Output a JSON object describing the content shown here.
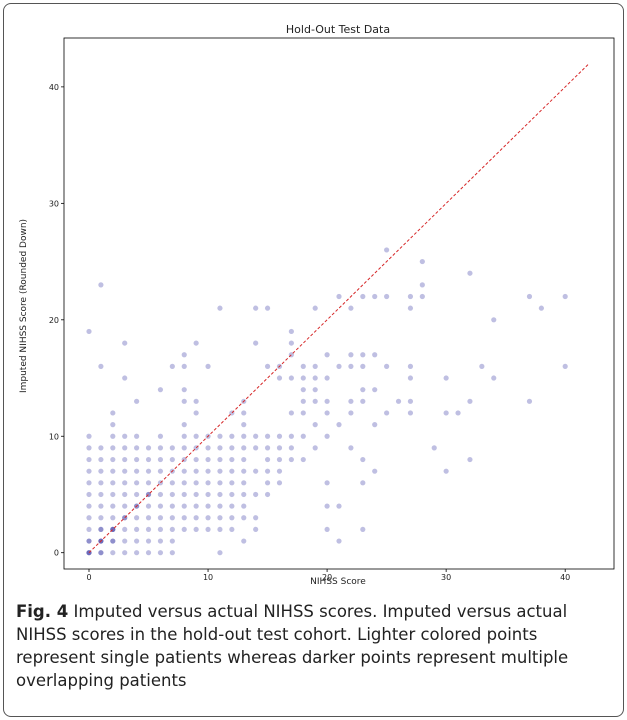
{
  "chart_data": {
    "type": "scatter",
    "title": "Hold-Out Test Data",
    "x_label": "NIHSS Score",
    "y_label": "Imputed NIHSS Score (Rounded Down)",
    "xlim": [
      -2.1,
      44.1
    ],
    "ylim": [
      -1.4,
      44.2
    ],
    "xticks": [
      0,
      10,
      20,
      30,
      40
    ],
    "yticks": [
      0,
      10,
      20,
      30,
      40
    ],
    "identity_line": {
      "x": [
        0,
        42
      ],
      "y": [
        0,
        42
      ],
      "color": "#d62728"
    },
    "series": [
      {
        "color": "#00008b",
        "alpha": 0.25,
        "x": [
          0,
          0,
          0,
          0,
          0,
          0,
          0,
          0,
          0,
          0,
          0,
          0,
          0,
          0,
          0,
          1,
          1,
          1,
          1,
          1,
          1,
          1,
          1,
          1,
          1,
          1,
          1,
          1,
          1,
          1,
          1,
          2,
          2,
          2,
          2,
          2,
          2,
          2,
          2,
          2,
          2,
          2,
          2,
          2,
          2,
          2,
          2,
          3,
          3,
          3,
          3,
          3,
          3,
          3,
          3,
          3,
          3,
          3,
          3,
          3,
          3,
          4,
          4,
          4,
          4,
          4,
          4,
          4,
          4,
          4,
          4,
          4,
          4,
          4,
          5,
          5,
          5,
          5,
          5,
          5,
          5,
          5,
          5,
          5,
          5,
          6,
          6,
          6,
          6,
          6,
          6,
          6,
          6,
          6,
          6,
          6,
          6,
          7,
          7,
          7,
          7,
          7,
          7,
          7,
          7,
          7,
          7,
          7,
          8,
          8,
          8,
          8,
          8,
          8,
          8,
          8,
          8,
          8,
          8,
          8,
          8,
          8,
          9,
          9,
          9,
          9,
          9,
          9,
          9,
          9,
          9,
          9,
          9,
          9,
          10,
          10,
          10,
          10,
          10,
          10,
          10,
          10,
          10,
          10,
          11,
          11,
          11,
          11,
          11,
          11,
          11,
          11,
          11,
          11,
          11,
          12,
          12,
          12,
          12,
          12,
          12,
          12,
          12,
          12,
          12,
          13,
          13,
          13,
          13,
          13,
          13,
          13,
          13,
          13,
          13,
          13,
          13,
          14,
          14,
          14,
          14,
          14,
          14,
          14,
          14,
          15,
          15,
          15,
          15,
          15,
          15,
          15,
          15,
          16,
          16,
          16,
          16,
          16,
          16,
          16,
          17,
          17,
          17,
          17,
          17,
          17,
          17,
          17,
          18,
          18,
          18,
          18,
          18,
          18,
          18,
          19,
          19,
          19,
          19,
          19,
          19,
          19,
          20,
          20,
          20,
          20,
          20,
          20,
          20,
          20,
          21,
          21,
          21,
          21,
          21,
          22,
          22,
          22,
          22,
          22,
          22,
          23,
          23,
          23,
          23,
          23,
          23,
          23,
          23,
          24,
          24,
          24,
          24,
          24,
          25,
          25,
          25,
          25,
          26,
          27,
          27,
          27,
          27,
          27,
          27,
          28,
          28,
          28,
          29,
          30,
          30,
          30,
          31,
          32,
          32,
          32,
          33,
          34,
          34,
          37,
          37,
          38,
          40,
          40
        ],
        "y": [
          0,
          0,
          0,
          1,
          1,
          2,
          3,
          4,
          5,
          6,
          7,
          8,
          9,
          10,
          19,
          0,
          0,
          1,
          1,
          1,
          2,
          2,
          3,
          4,
          5,
          6,
          7,
          8,
          9,
          16,
          23,
          0,
          1,
          1,
          2,
          2,
          2,
          3,
          4,
          5,
          6,
          7,
          8,
          9,
          10,
          11,
          12,
          0,
          1,
          2,
          3,
          3,
          4,
          5,
          6,
          7,
          8,
          9,
          10,
          15,
          18,
          0,
          1,
          2,
          3,
          4,
          4,
          5,
          6,
          7,
          8,
          9,
          10,
          13,
          0,
          1,
          2,
          3,
          4,
          5,
          5,
          6,
          7,
          8,
          9,
          0,
          1,
          2,
          3,
          4,
          5,
          6,
          7,
          8,
          9,
          10,
          14,
          0,
          1,
          2,
          3,
          4,
          5,
          6,
          7,
          8,
          9,
          16,
          2,
          3,
          4,
          5,
          6,
          7,
          8,
          9,
          10,
          11,
          13,
          14,
          16,
          17,
          2,
          3,
          4,
          5,
          6,
          7,
          8,
          9,
          10,
          12,
          13,
          18,
          2,
          3,
          4,
          5,
          6,
          7,
          8,
          9,
          10,
          16,
          0,
          2,
          3,
          4,
          5,
          6,
          7,
          8,
          9,
          10,
          21,
          2,
          3,
          4,
          5,
          6,
          7,
          8,
          9,
          10,
          12,
          1,
          3,
          4,
          5,
          6,
          7,
          8,
          9,
          10,
          11,
          12,
          13,
          2,
          3,
          5,
          7,
          9,
          10,
          18,
          21,
          5,
          6,
          7,
          8,
          9,
          10,
          16,
          21,
          6,
          7,
          8,
          9,
          10,
          15,
          16,
          8,
          9,
          10,
          12,
          15,
          17,
          18,
          19,
          8,
          10,
          12,
          13,
          14,
          15,
          16,
          9,
          11,
          13,
          14,
          15,
          16,
          21,
          2,
          4,
          6,
          10,
          12,
          13,
          15,
          17,
          1,
          4,
          11,
          16,
          22,
          9,
          12,
          13,
          16,
          17,
          21,
          2,
          6,
          8,
          13,
          14,
          16,
          17,
          22,
          7,
          11,
          14,
          17,
          22,
          12,
          16,
          22,
          26,
          13,
          12,
          13,
          15,
          16,
          21,
          22,
          22,
          23,
          25,
          9,
          7,
          12,
          15,
          12,
          8,
          13,
          24,
          16,
          15,
          20,
          13,
          22,
          21,
          16,
          22
        ]
      }
    ]
  },
  "caption": {
    "label": "Fig. 4",
    "text": "Imputed versus actual NIHSS scores. Imputed versus actual NIHSS scores in the hold-out test cohort. Lighter colored points represent single patients whereas darker points represent multiple overlapping patients"
  }
}
